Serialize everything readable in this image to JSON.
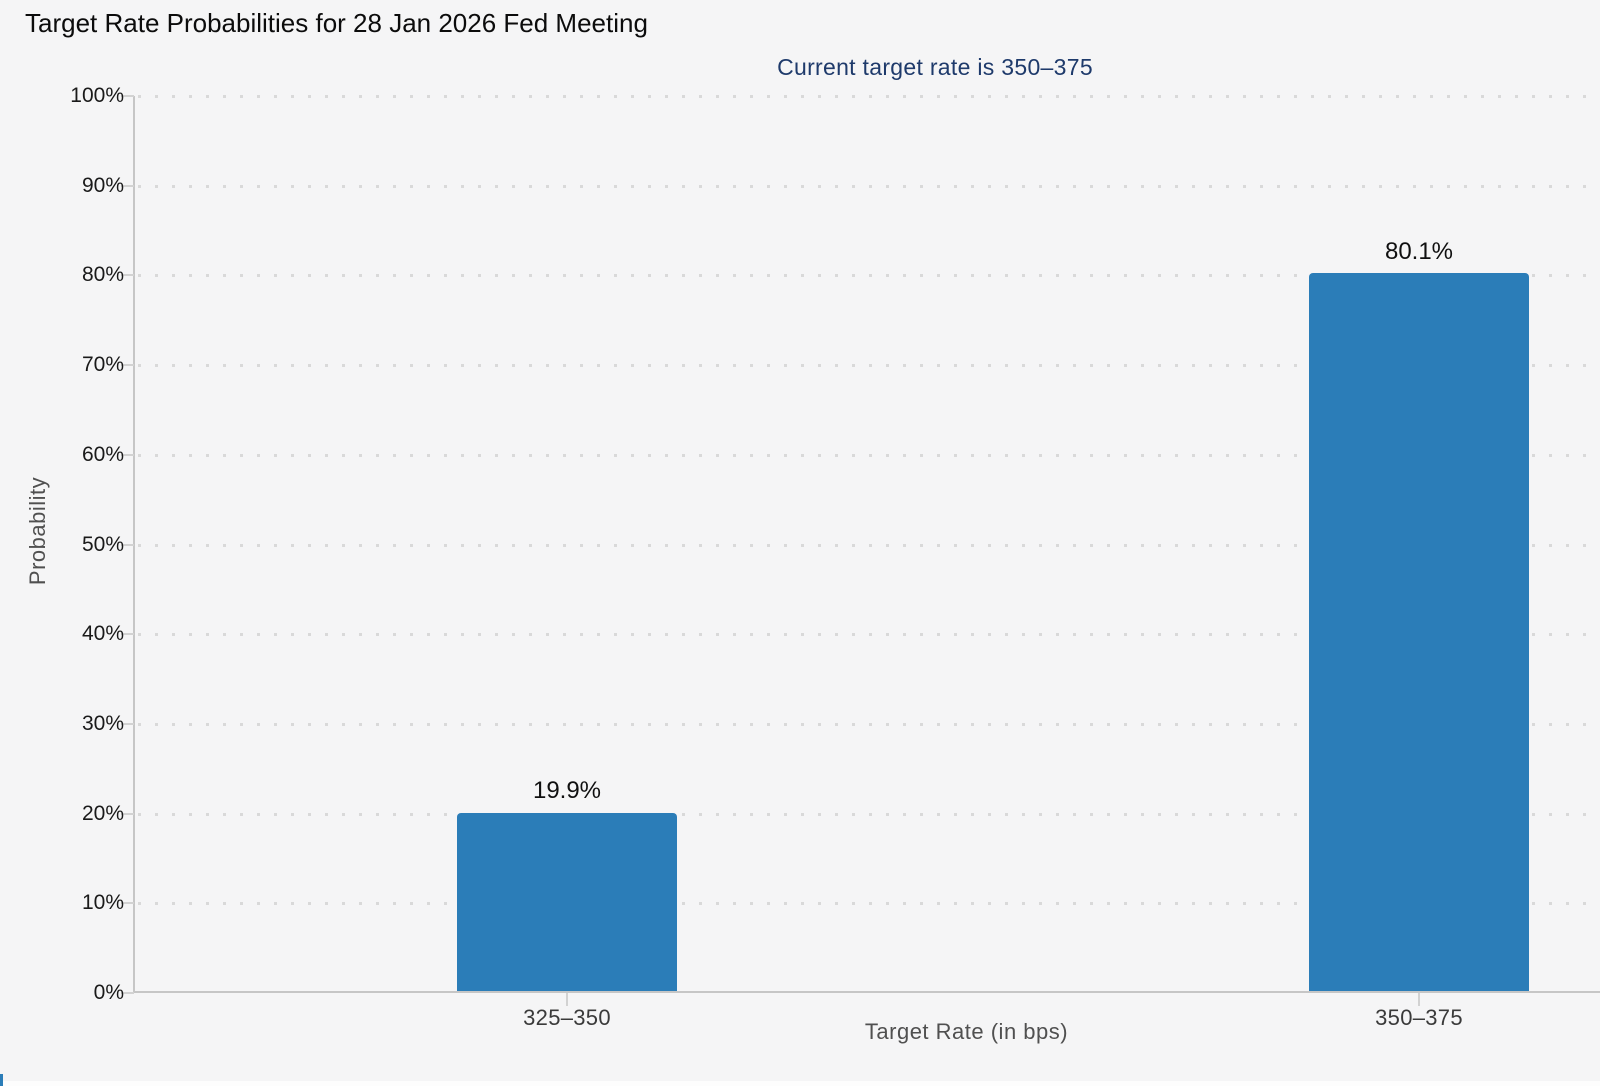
{
  "chart_data": {
    "type": "bar",
    "title": "Target Rate Probabilities for 28 Jan 2026 Fed Meeting",
    "subtitle": "Current target rate is 350–375",
    "xlabel": "Target Rate (in bps)",
    "ylabel": "Probability",
    "categories": [
      "325–350",
      "350–375"
    ],
    "values": [
      19.9,
      80.1
    ],
    "value_labels": [
      "19.9%",
      "80.1%"
    ],
    "ylim": [
      0,
      100
    ],
    "yticks": [
      "0%",
      "10%",
      "20%",
      "30%",
      "40%",
      "50%",
      "60%",
      "70%",
      "80%",
      "90%",
      "100%"
    ],
    "grid": "horizontal-dotted",
    "legend": "none",
    "colors": {
      "bar": "#2b7db8",
      "subtitle_text": "#1e3a6b",
      "background": "#f5f5f6",
      "axis_line": "#c6c6c6",
      "grid_dot": "#d9d9d9",
      "axis_title_text": "#505050",
      "ytick_text": "#1a1a1a",
      "xtick_text": "#3a3a3a"
    }
  }
}
